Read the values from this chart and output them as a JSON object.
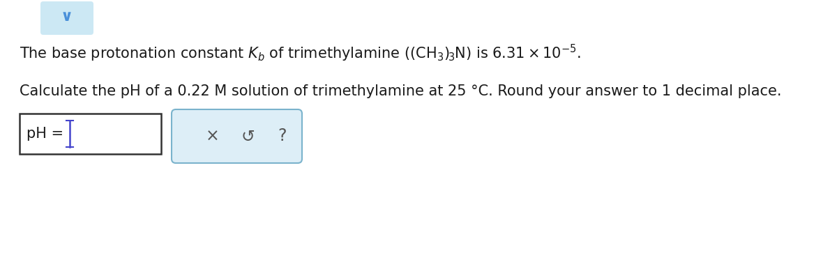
{
  "background_color": "#ffffff",
  "line1_mathtext": "The base protonation constant $\\mathit{K}_{\\mathit{b}}$ of trimethylamine $\\left(\\left(\\mathrm{CH}_3\\right)_{\\!3}\\mathrm{N}\\right)$ is $6.31 \\times 10^{-5}$.",
  "line2": "Calculate the pH of a 0.22 M solution of trimethylamine at 25 °C. Round your answer to 1 decimal place.",
  "font_size_main": 15,
  "text_color": "#1a1a1a",
  "chevron_color": "#4a90d9",
  "chevron_bg": "#cce8f4",
  "input_box_edge": "#333333",
  "input_box_face": "#ffffff",
  "cursor_color": "#4444cc",
  "btn_edge": "#7ab3cc",
  "btn_face": "#ddeef7",
  "btn_text_color": "#555555"
}
